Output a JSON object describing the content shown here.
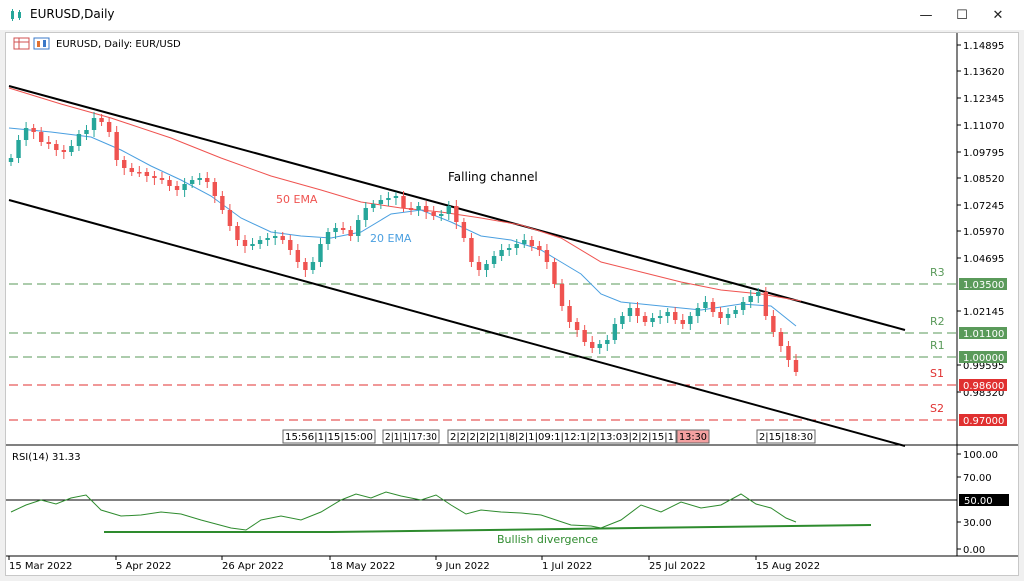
{
  "window": {
    "title": "EURUSD,Daily",
    "minimize_glyph": "—",
    "maximize_glyph": "☐",
    "close_glyph": "✕"
  },
  "chart": {
    "symbol_label": "EURUSD, Daily:  EUR/USD",
    "price_ticks": [
      "1.14895",
      "1.13620",
      "1.12345",
      "1.11070",
      "1.09795",
      "1.08520",
      "1.07245",
      "1.05970",
      "1.04695",
      "1.02145",
      "0.99595",
      "0.98320"
    ],
    "x_ticks": [
      "15 Mar 2022",
      "5 Apr 2022",
      "26 Apr 2022",
      "18 May 2022",
      "9 Jun 2022",
      "1 Jul 2022",
      "25 Jul 2022",
      "15 Aug 2022"
    ],
    "annotations": {
      "falling_channel": "Falling channel",
      "ema50": "50 EMA",
      "ema20": "20 EMA",
      "bullish_divergence": "Bullish divergence"
    },
    "levels": [
      {
        "name": "R3",
        "price_label": "1.03500",
        "color": "#5a9a5a"
      },
      {
        "name": "R2",
        "price_label": "1.01100",
        "color": "#5a9a5a"
      },
      {
        "name": "R1",
        "price_label": "1.00000",
        "color": "#5a9a5a"
      },
      {
        "name": "S1",
        "price_label": "0.98600",
        "color": "#e03030"
      },
      {
        "name": "S2",
        "price_label": "0.97000",
        "color": "#e03030"
      }
    ],
    "event_boxes": [
      {
        "text": "15:56|1|15|15:00",
        "highlight": false
      },
      {
        "text": "2|1|1|17:30",
        "highlight": false
      },
      {
        "text": "2|2|2|2|2|1|8|2|1|09:1|12:1|2|13:03|2|2|15|1",
        "highlight": false
      },
      {
        "text": "13:30",
        "highlight": true
      },
      {
        "text": "2|15|18:30",
        "highlight": false
      }
    ],
    "colors": {
      "bull": "#26a69a",
      "bear": "#ef5350",
      "ema50": "#ef5350",
      "ema20": "#4a9fe0",
      "rsi": "#2e8b2e",
      "channel": "#000000"
    }
  },
  "rsi": {
    "label": "RSI(14) 31.33",
    "ticks": [
      "100.00",
      "70.00",
      "30.00",
      "0.00"
    ],
    "level_label": "50.00"
  }
}
